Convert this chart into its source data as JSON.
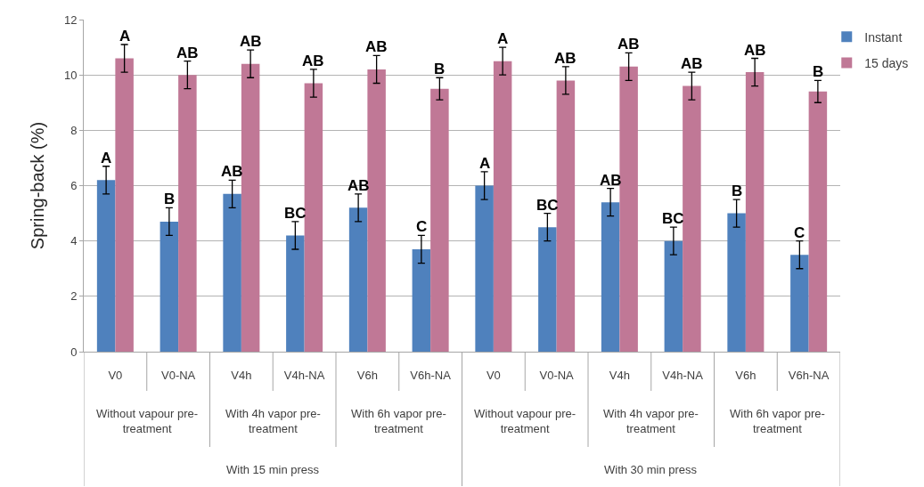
{
  "chart_data": {
    "type": "bar",
    "ylabel": "Spring-back (%)",
    "categories": [
      "V0",
      "V0-NA",
      "V4h",
      "V4h-NA",
      "V6h",
      "V6h-NA",
      "V0",
      "V0-NA",
      "V4h",
      "V4h-NA",
      "V6h",
      "V6h-NA"
    ],
    "series": [
      {
        "name": "Instant",
        "color": "#4f81bd",
        "values": [
          6.2,
          4.7,
          5.7,
          4.2,
          5.2,
          3.7,
          6.0,
          4.5,
          5.4,
          4.0,
          5.0,
          3.5
        ],
        "errors": [
          0.5,
          0.5,
          0.5,
          0.5,
          0.5,
          0.5,
          0.5,
          0.5,
          0.5,
          0.5,
          0.5,
          0.5
        ],
        "value_labels": [
          "A",
          "B",
          "AB",
          "BC",
          "AB",
          "C",
          "A",
          "BC",
          "AB",
          "BC",
          "B",
          "C"
        ]
      },
      {
        "name": "15 days",
        "color": "#c07896",
        "values": [
          10.6,
          10.0,
          10.4,
          9.7,
          10.2,
          9.5,
          10.5,
          9.8,
          10.3,
          9.6,
          10.1,
          9.4
        ],
        "errors": [
          0.5,
          0.5,
          0.5,
          0.5,
          0.5,
          0.4,
          0.5,
          0.5,
          0.5,
          0.5,
          0.5,
          0.4
        ],
        "value_labels": [
          "A",
          "AB",
          "AB",
          "AB",
          "AB",
          "B",
          "A",
          "AB",
          "AB",
          "AB",
          "AB",
          "B"
        ]
      }
    ],
    "ylim": [
      0,
      12
    ],
    "yticks": [
      0,
      2,
      4,
      6,
      8,
      10,
      12
    ],
    "grid": "y",
    "legend": "top right",
    "annotations": [
      "Without vapour pre-treatment",
      "With 4h vapor pre-treatment",
      "With 6h vapor pre-treatment",
      "Without vapour pre-treatment",
      "With 4h vapor pre-treatment",
      "With 6h vapor pre-treatment",
      "With 15 min press",
      "With 30 min press"
    ]
  }
}
